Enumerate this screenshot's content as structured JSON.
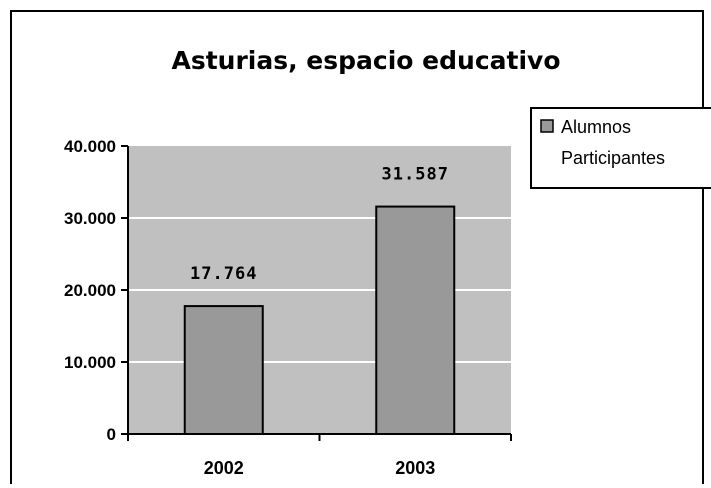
{
  "chart_data": {
    "type": "bar",
    "title": "Asturias, espacio educativo",
    "categories": [
      "2002",
      "2003"
    ],
    "series": [
      {
        "name": "Alumnos Participantes",
        "values": [
          17764,
          31587
        ]
      }
    ],
    "data_labels": [
      "17.764",
      "31.587"
    ],
    "ylim": [
      0,
      40000
    ],
    "yticks": [
      0,
      10000,
      20000,
      30000,
      40000
    ],
    "ytick_labels": [
      "0",
      "10.000",
      "20.000",
      "30.000",
      "40.000"
    ],
    "legend_lines": [
      "Alumnos",
      "Participantes"
    ],
    "grid": true,
    "legend_position": "right",
    "colors": {
      "plot_bg": "#c0c0c0",
      "bar": "#999999",
      "grid": "#ffffff"
    }
  }
}
